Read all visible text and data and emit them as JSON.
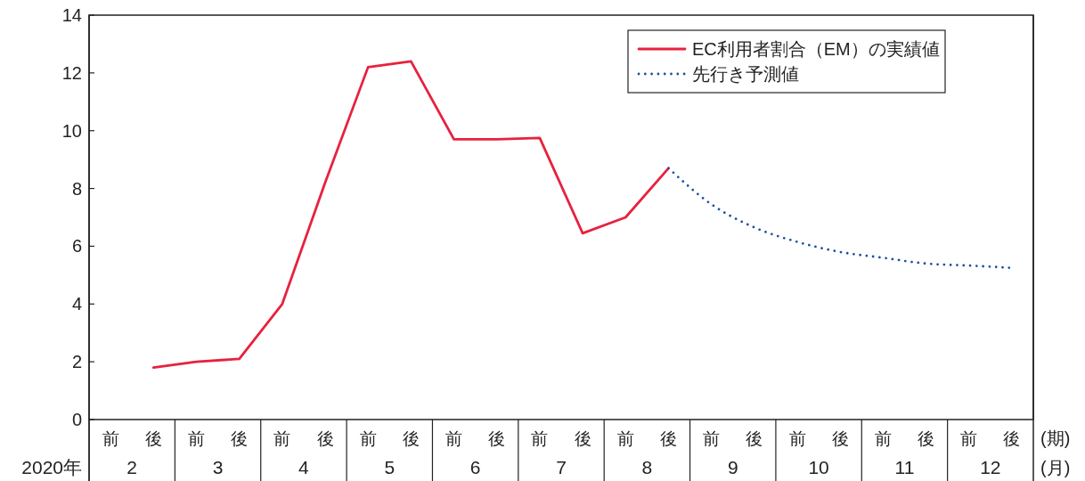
{
  "chart_data": {
    "type": "line",
    "categories": [
      "前",
      "後",
      "前",
      "後",
      "前",
      "後",
      "前",
      "後",
      "前",
      "後",
      "前",
      "後",
      "前",
      "後",
      "前",
      "後",
      "前",
      "後",
      "前",
      "後",
      "前",
      "後"
    ],
    "xlabel": "(期)",
    "annotations": [
      "2020年",
      "2",
      "3",
      "4",
      "5",
      "6",
      "7",
      "8",
      "9",
      "10",
      "11",
      "12",
      "(月)"
    ],
    "ylim": [
      0,
      14
    ],
    "yticks": [
      0,
      2,
      4,
      6,
      8,
      10,
      12,
      14
    ],
    "legend": "top right",
    "series": [
      {
        "name": "EC利用者割合（EM）の実績値",
        "color": "#e8213d",
        "line_style": "solid",
        "values": [
          null,
          1.8,
          2.0,
          2.1,
          4.0,
          8.2,
          12.2,
          12.4,
          9.7,
          9.7,
          9.75,
          6.45,
          7.0,
          8.7,
          null,
          null,
          null,
          null,
          null,
          null,
          null,
          null
        ]
      },
      {
        "name": "先行き予測値",
        "color": "#1b4f9e",
        "line_style": "dotted",
        "values": [
          null,
          null,
          null,
          null,
          null,
          null,
          null,
          null,
          null,
          null,
          null,
          null,
          null,
          8.7,
          7.45,
          6.65,
          6.15,
          5.8,
          5.6,
          5.4,
          5.33,
          5.25
        ]
      }
    ]
  }
}
